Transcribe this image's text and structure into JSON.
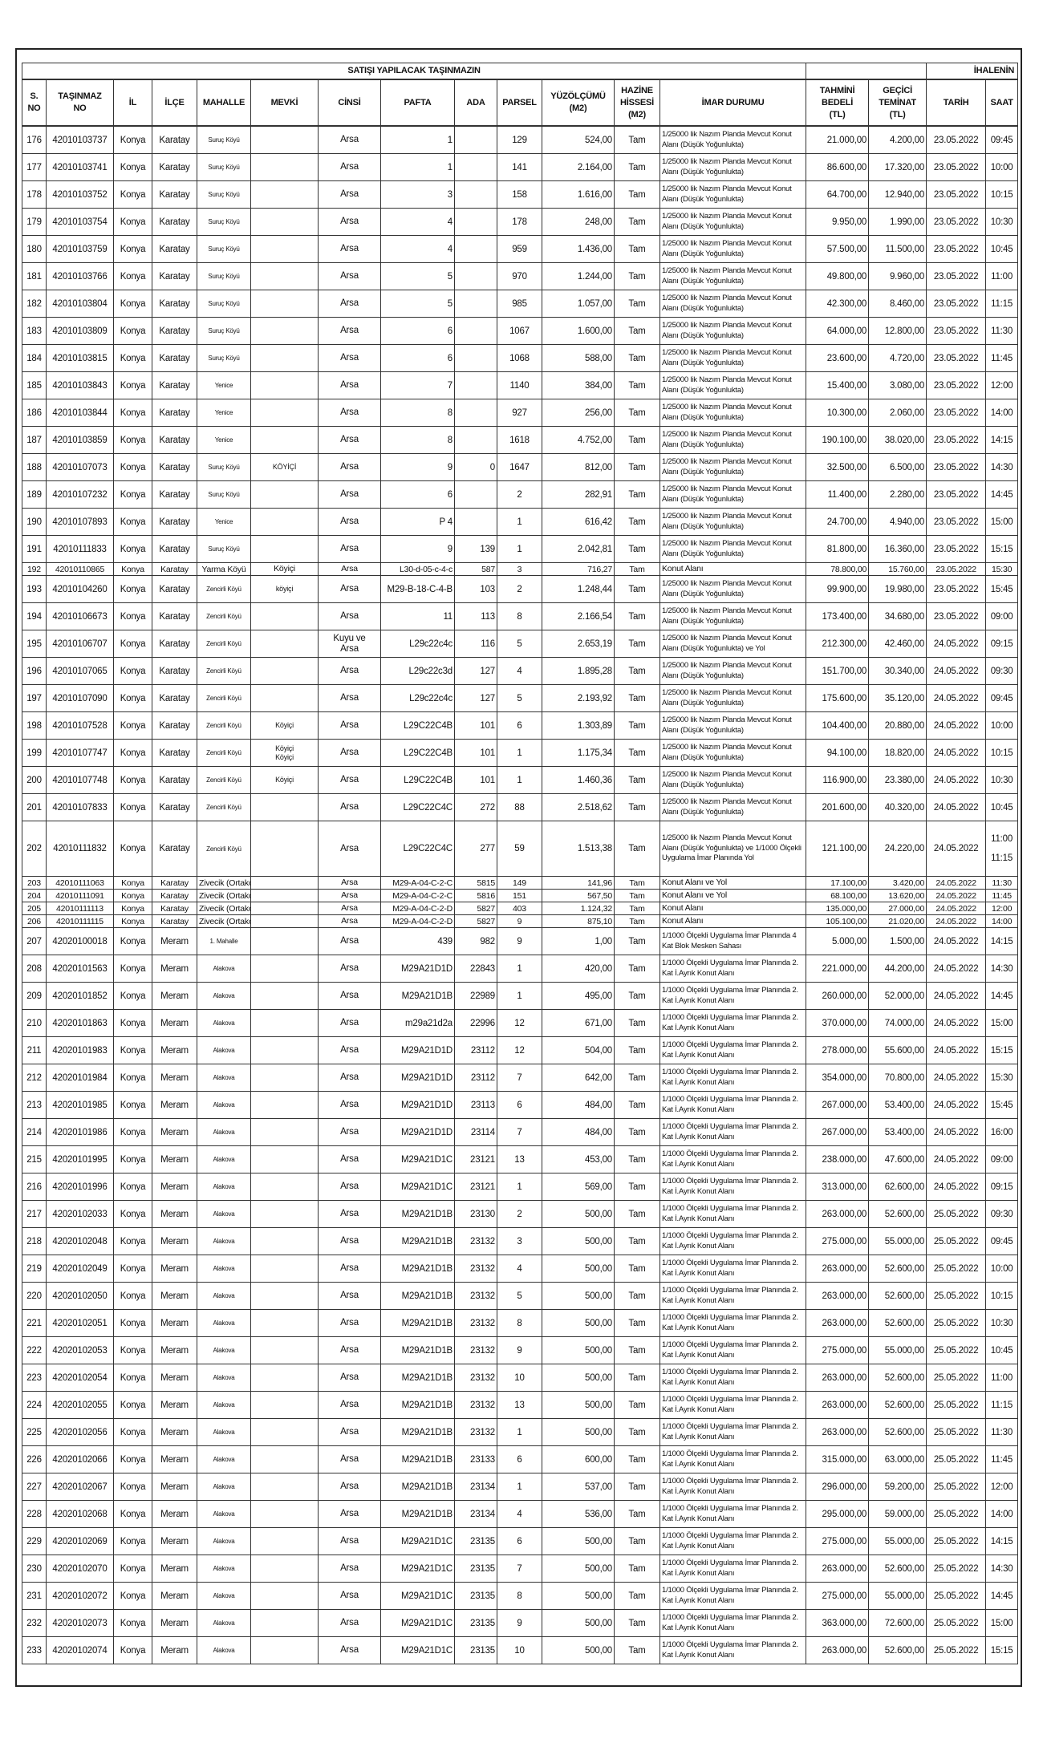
{
  "title": "SATIŞI YAPILACAK TAŞINMAZIN",
  "ihale_title": "İHALENİN",
  "headers": [
    "S.\nNO",
    "TAŞINMAZ\nNO",
    "İL",
    "İLÇE",
    "MAHALLE",
    "MEVKİ",
    "CİNSİ",
    "PAFTA",
    "ADA",
    "PARSEL",
    "YÜZÖLÇÜMÜ\n(M2)",
    "HAZİNE\nHİSSESİ\n(M2)",
    "İMAR DURUMU",
    "TAHMİNİ\nBEDELİ\n(TL)",
    "GEÇİCİ\nTEMİNAT\n(TL)",
    "TARİH",
    "SAAT"
  ],
  "rows": [
    [
      "176",
      "42010103737",
      "Konya",
      "Karatay",
      "Suruç Köyü",
      "",
      "Arsa",
      "1",
      "",
      "129",
      "524,00",
      "Tam",
      "1/25000 lik Nazım Planda Mevcut Konut Alanı (Düşük Yoğunlukta)",
      "21.000,00",
      "4.200,00",
      "23.05.2022",
      "09:45"
    ],
    [
      "177",
      "42010103741",
      "Konya",
      "Karatay",
      "Suruç Köyü",
      "",
      "Arsa",
      "1",
      "",
      "141",
      "2.164,00",
      "Tam",
      "1/25000 lik Nazım Planda Mevcut Konut Alanı (Düşük Yoğunlukta)",
      "86.600,00",
      "17.320,00",
      "23.05.2022",
      "10:00"
    ],
    [
      "178",
      "42010103752",
      "Konya",
      "Karatay",
      "Suruç Köyü",
      "",
      "Arsa",
      "3",
      "",
      "158",
      "1.616,00",
      "Tam",
      "1/25000 lik Nazım Planda Mevcut Konut Alanı (Düşük Yoğunlukta)",
      "64.700,00",
      "12.940,00",
      "23.05.2022",
      "10:15"
    ],
    [
      "179",
      "42010103754",
      "Konya",
      "Karatay",
      "Suruç Köyü",
      "",
      "Arsa",
      "4",
      "",
      "178",
      "248,00",
      "Tam",
      "1/25000 lik Nazım Planda Mevcut Konut Alanı (Düşük Yoğunlukta)",
      "9.950,00",
      "1.990,00",
      "23.05.2022",
      "10:30"
    ],
    [
      "180",
      "42010103759",
      "Konya",
      "Karatay",
      "Suruç Köyü",
      "",
      "Arsa",
      "4",
      "",
      "959",
      "1.436,00",
      "Tam",
      "1/25000 lik Nazım Planda Mevcut Konut Alanı (Düşük Yoğunlukta)",
      "57.500,00",
      "11.500,00",
      "23.05.2022",
      "10:45"
    ],
    [
      "181",
      "42010103766",
      "Konya",
      "Karatay",
      "Suruç Köyü",
      "",
      "Arsa",
      "5",
      "",
      "970",
      "1.244,00",
      "Tam",
      "1/25000 lik Nazım Planda Mevcut Konut Alanı (Düşük Yoğunlukta)",
      "49.800,00",
      "9.960,00",
      "23.05.2022",
      "11:00"
    ],
    [
      "182",
      "42010103804",
      "Konya",
      "Karatay",
      "Suruç Köyü",
      "",
      "Arsa",
      "5",
      "",
      "985",
      "1.057,00",
      "Tam",
      "1/25000 lik Nazım Planda Mevcut Konut Alanı (Düşük Yoğunlukta)",
      "42.300,00",
      "8.460,00",
      "23.05.2022",
      "11:15"
    ],
    [
      "183",
      "42010103809",
      "Konya",
      "Karatay",
      "Suruç Köyü",
      "",
      "Arsa",
      "6",
      "",
      "1067",
      "1.600,00",
      "Tam",
      "1/25000 lik Nazım Planda Mevcut Konut Alanı (Düşük Yoğunlukta)",
      "64.000,00",
      "12.800,00",
      "23.05.2022",
      "11:30"
    ],
    [
      "184",
      "42010103815",
      "Konya",
      "Karatay",
      "Suruç Köyü",
      "",
      "Arsa",
      "6",
      "",
      "1068",
      "588,00",
      "Tam",
      "1/25000 lik Nazım Planda Mevcut Konut Alanı (Düşük Yoğunlukta)",
      "23.600,00",
      "4.720,00",
      "23.05.2022",
      "11:45"
    ],
    [
      "185",
      "42010103843",
      "Konya",
      "Karatay",
      "Yenice",
      "",
      "Arsa",
      "7",
      "",
      "1140",
      "384,00",
      "Tam",
      "1/25000 lik Nazım Planda Mevcut Konut Alanı (Düşük Yoğunlukta)",
      "15.400,00",
      "3.080,00",
      "23.05.2022",
      "12:00"
    ],
    [
      "186",
      "42010103844",
      "Konya",
      "Karatay",
      "Yenice",
      "",
      "Arsa",
      "8",
      "",
      "927",
      "256,00",
      "Tam",
      "1/25000 lik Nazım Planda Mevcut Konut Alanı (Düşük Yoğunlukta)",
      "10.300,00",
      "2.060,00",
      "23.05.2022",
      "14:00"
    ],
    [
      "187",
      "42010103859",
      "Konya",
      "Karatay",
      "Yenice",
      "",
      "Arsa",
      "8",
      "",
      "1618",
      "4.752,00",
      "Tam",
      "1/25000 lik Nazım Planda Mevcut Konut Alanı (Düşük Yoğunlukta)",
      "190.100,00",
      "38.020,00",
      "23.05.2022",
      "14:15"
    ],
    [
      "188",
      "42010107073",
      "Konya",
      "Karatay",
      "Suruç Köyü",
      "KÖYİÇİ",
      "Arsa",
      "9",
      "0",
      "1647",
      "812,00",
      "Tam",
      "1/25000 lik Nazım Planda Mevcut Konut Alanı (Düşük Yoğunlukta)",
      "32.500,00",
      "6.500,00",
      "23.05.2022",
      "14:30"
    ],
    [
      "189",
      "42010107232",
      "Konya",
      "Karatay",
      "Suruç Köyü",
      "",
      "Arsa",
      "6",
      "",
      "2",
      "282,91",
      "Tam",
      "1/25000 lik Nazım Planda Mevcut Konut Alanı (Düşük Yoğunlukta)",
      "11.400,00",
      "2.280,00",
      "23.05.2022",
      "14:45"
    ],
    [
      "190",
      "42010107893",
      "Konya",
      "Karatay",
      "Yenice",
      "",
      "Arsa",
      "P 4",
      "",
      "1",
      "616,42",
      "Tam",
      "1/25000 lik Nazım Planda Mevcut Konut Alanı (Düşük Yoğunlukta)",
      "24.700,00",
      "4.940,00",
      "23.05.2022",
      "15:00"
    ],
    [
      "191",
      "42010111833",
      "Konya",
      "Karatay",
      "Suruç Köyü",
      "",
      "Arsa",
      "9",
      "139",
      "1",
      "2.042,81",
      "Tam",
      "1/25000 lik Nazım Planda Mevcut Konut Alanı (Düşük Yoğunlukta)",
      "81.800,00",
      "16.360,00",
      "23.05.2022",
      "15:15"
    ],
    [
      "192",
      "42010110865",
      "Konya",
      "Karatay",
      "Yarma Köyü",
      "Köyiçi",
      "Arsa",
      "L30-d-05-c-4-c",
      "587",
      "3",
      "716,27",
      "Tam",
      "Konut Alanı",
      "78.800,00",
      "15.760,00",
      "23.05.2022",
      "15:30"
    ],
    [
      "193",
      "42010104260",
      "Konya",
      "Karatay",
      "Zencirli Köyü",
      "köyiçi",
      "Arsa",
      "M29-B-18-C-4-B",
      "103",
      "2",
      "1.248,44",
      "Tam",
      "1/25000 lik Nazım Planda Mevcut Konut Alanı (Düşük Yoğunlukta)",
      "99.900,00",
      "19.980,00",
      "23.05.2022",
      "15:45"
    ],
    [
      "194",
      "42010106673",
      "Konya",
      "Karatay",
      "Zencirli Köyü",
      "",
      "Arsa",
      "11",
      "113",
      "8",
      "2.166,54",
      "Tam",
      "1/25000 lik Nazım Planda Mevcut Konut Alanı (Düşük Yoğunlukta)",
      "173.400,00",
      "34.680,00",
      "23.05.2022",
      "09:00"
    ],
    [
      "195",
      "42010106707",
      "Konya",
      "Karatay",
      "Zencirli Köyü",
      "",
      "Kuyu ve\nArsa",
      "L29c22c4c",
      "116",
      "5",
      "2.653,19",
      "Tam",
      "1/25000 lik Nazım Planda Mevcut Konut Alanı (Düşük Yoğunlukta) ve Yol",
      "212.300,00",
      "42.460,00",
      "24.05.2022",
      "09:15"
    ],
    [
      "196",
      "42010107065",
      "Konya",
      "Karatay",
      "Zencirli Köyü",
      "",
      "Arsa",
      "L29c22c3d",
      "127",
      "4",
      "1.895,28",
      "Tam",
      "1/25000 lik Nazım Planda Mevcut Konut Alanı (Düşük Yoğunlukta)",
      "151.700,00",
      "30.340,00",
      "24.05.2022",
      "09:30"
    ],
    [
      "197",
      "42010107090",
      "Konya",
      "Karatay",
      "Zencirli Köyü",
      "",
      "Arsa",
      "L29c22c4c",
      "127",
      "5",
      "2.193,92",
      "Tam",
      "1/25000 lik Nazım Planda Mevcut Konut Alanı (Düşük Yoğunlukta)",
      "175.600,00",
      "35.120,00",
      "24.05.2022",
      "09:45"
    ],
    [
      "198",
      "42010107528",
      "Konya",
      "Karatay",
      "Zencirli Köyü",
      "Köyiçi",
      "Arsa",
      "L29C22C4B",
      "101",
      "6",
      "1.303,89",
      "Tam",
      "1/25000 lik Nazım Planda Mevcut Konut Alanı (Düşük Yoğunlukta)",
      "104.400,00",
      "20.880,00",
      "24.05.2022",
      "10:00"
    ],
    [
      "199",
      "42010107747",
      "Konya",
      "Karatay",
      "Zencirli Köyü",
      "Köyiçi\nKöyiçi",
      "Arsa",
      "L29C22C4B",
      "101",
      "1",
      "1.175,34",
      "Tam",
      "1/25000 lik Nazım Planda Mevcut Konut Alanı (Düşük Yoğunlukta)",
      "94.100,00",
      "18.820,00",
      "24.05.2022",
      "10:15"
    ],
    [
      "200",
      "42010107748",
      "Konya",
      "Karatay",
      "Zencirli Köyü",
      "Köyiçi",
      "Arsa",
      "L29C22C4B",
      "101",
      "1",
      "1.460,36",
      "Tam",
      "1/25000 lik Nazım Planda Mevcut Konut Alanı (Düşük Yoğunlukta)",
      "116.900,00",
      "23.380,00",
      "24.05.2022",
      "10:30"
    ],
    [
      "201",
      "42010107833",
      "Konya",
      "Karatay",
      "Zencirli Köyü",
      "",
      "Arsa",
      "L29C22C4C",
      "272",
      "88",
      "2.518,62",
      "Tam",
      "1/25000 lik Nazım Planda Mevcut Konut Alanı (Düşük Yoğunlukta)",
      "201.600,00",
      "40.320,00",
      "24.05.2022",
      "10:45"
    ],
    [
      "202",
      "42010111832",
      "Konya",
      "Karatay",
      "Zencirli Köyü",
      "",
      "Arsa",
      "L29C22C4C",
      "277",
      "59",
      "1.513,38",
      "Tam",
      "1/25000 lik Nazım Planda Mevcut Konut Alanı (Düşük Yoğunlukta) ve 1/1000 Ölçekli Uygulama İmar Planında Yol",
      "121.100,00",
      "24.220,00",
      "24.05.2022",
      "11:00\n\n11:15"
    ],
    [
      "203",
      "42010111063",
      "Konya",
      "Karatay",
      "Zivecik (Ortakonak)",
      "",
      "Arsa",
      "M29-A-04-C-2-C",
      "5815",
      "149",
      "141,96",
      "Tam",
      "Konut Alanı ve Yol",
      "17.100,00",
      "3.420,00",
      "24.05.2022",
      "11:30"
    ],
    [
      "204",
      "42010111091",
      "Konya",
      "Karatay",
      "Zivecik (Ortakonak)",
      "",
      "Arsa",
      "M29-A-04-C-2-C",
      "5816",
      "151",
      "567,50",
      "Tam",
      "Konut Alanı ve Yol",
      "68.100,00",
      "13.620,00",
      "24.05.2022",
      "11:45"
    ],
    [
      "205",
      "42010111113",
      "Konya",
      "Karatay",
      "Zivecik (Ortakonak)",
      "",
      "Arsa",
      "M29-A-04-C-2-D",
      "5827",
      "403",
      "1.124,32",
      "Tam",
      "Konut Alanı",
      "135.000,00",
      "27.000,00",
      "24.05.2022",
      "12:00"
    ],
    [
      "206",
      "42010111115",
      "Konya",
      "Karatay",
      "Zivecik (Ortakonak)",
      "",
      "Arsa",
      "M29-A-04-C-2-D",
      "5827",
      "9",
      "875,10",
      "Tam",
      "Konut Alanı",
      "105.100,00",
      "21.020,00",
      "24.05.2022",
      "14:00"
    ],
    [
      "207",
      "42020100018",
      "Konya",
      "Meram",
      "1. Mahalle",
      "",
      "Arsa",
      "439",
      "982",
      "9",
      "1,00",
      "Tam",
      "1/1000 Ölçekli Uygulama İmar Planında 4 Kat Blok Mesken Sahası",
      "5.000,00",
      "1.500,00",
      "24.05.2022",
      "14:15"
    ],
    [
      "208",
      "42020101563",
      "Konya",
      "Meram",
      "Alakova",
      "",
      "Arsa",
      "M29A21D1D",
      "22843",
      "1",
      "420,00",
      "Tam",
      "1/1000 Ölçekli Uygulama İmar Planında 2. Kat İ.Ayrık Konut Alanı",
      "221.000,00",
      "44.200,00",
      "24.05.2022",
      "14:30"
    ],
    [
      "209",
      "42020101852",
      "Konya",
      "Meram",
      "Alakova",
      "",
      "Arsa",
      "M29A21D1B",
      "22989",
      "1",
      "495,00",
      "Tam",
      "1/1000 Ölçekli Uygulama İmar Planında 2. Kat İ.Ayrık Konut Alanı",
      "260.000,00",
      "52.000,00",
      "24.05.2022",
      "14:45"
    ],
    [
      "210",
      "42020101863",
      "Konya",
      "Meram",
      "Alakova",
      "",
      "Arsa",
      "m29a21d2a",
      "22996",
      "12",
      "671,00",
      "Tam",
      "1/1000 Ölçekli Uygulama İmar Planında 2. Kat İ.Ayrık Konut Alanı",
      "370.000,00",
      "74.000,00",
      "24.05.2022",
      "15:00"
    ],
    [
      "211",
      "42020101983",
      "Konya",
      "Meram",
      "Alakova",
      "",
      "Arsa",
      "M29A21D1D",
      "23112",
      "12",
      "504,00",
      "Tam",
      "1/1000 Ölçekli Uygulama İmar Planında 2. Kat İ.Ayrık Konut Alanı",
      "278.000,00",
      "55.600,00",
      "24.05.2022",
      "15:15"
    ],
    [
      "212",
      "42020101984",
      "Konya",
      "Meram",
      "Alakova",
      "",
      "Arsa",
      "M29A21D1D",
      "23112",
      "7",
      "642,00",
      "Tam",
      "1/1000 Ölçekli Uygulama İmar Planında 2. Kat İ.Ayrık Konut Alanı",
      "354.000,00",
      "70.800,00",
      "24.05.2022",
      "15:30"
    ],
    [
      "213",
      "42020101985",
      "Konya",
      "Meram",
      "Alakova",
      "",
      "Arsa",
      "M29A21D1D",
      "23113",
      "6",
      "484,00",
      "Tam",
      "1/1000 Ölçekli Uygulama İmar Planında 2. Kat İ.Ayrık Konut Alanı",
      "267.000,00",
      "53.400,00",
      "24.05.2022",
      "15:45"
    ],
    [
      "214",
      "42020101986",
      "Konya",
      "Meram",
      "Alakova",
      "",
      "Arsa",
      "M29A21D1D",
      "23114",
      "7",
      "484,00",
      "Tam",
      "1/1000 Ölçekli Uygulama İmar Planında 2. Kat İ.Ayrık Konut Alanı",
      "267.000,00",
      "53.400,00",
      "24.05.2022",
      "16:00"
    ],
    [
      "215",
      "42020101995",
      "Konya",
      "Meram",
      "Alakova",
      "",
      "Arsa",
      "M29A21D1C",
      "23121",
      "13",
      "453,00",
      "Tam",
      "1/1000 Ölçekli Uygulama İmar Planında 2. Kat İ.Ayrık Konut Alanı",
      "238.000,00",
      "47.600,00",
      "24.05.2022",
      "09:00"
    ],
    [
      "216",
      "42020101996",
      "Konya",
      "Meram",
      "Alakova",
      "",
      "Arsa",
      "M29A21D1C",
      "23121",
      "1",
      "569,00",
      "Tam",
      "1/1000 Ölçekli Uygulama İmar Planında 2. Kat İ.Ayrık Konut Alanı",
      "313.000,00",
      "62.600,00",
      "24.05.2022",
      "09:15"
    ],
    [
      "217",
      "42020102033",
      "Konya",
      "Meram",
      "Alakova",
      "",
      "Arsa",
      "M29A21D1B",
      "23130",
      "2",
      "500,00",
      "Tam",
      "1/1000 Ölçekli Uygulama İmar Planında 2. Kat İ.Ayrık Konut Alanı",
      "263.000,00",
      "52.600,00",
      "25.05.2022",
      "09:30"
    ],
    [
      "218",
      "42020102048",
      "Konya",
      "Meram",
      "Alakova",
      "",
      "Arsa",
      "M29A21D1B",
      "23132",
      "3",
      "500,00",
      "Tam",
      "1/1000 Ölçekli Uygulama İmar Planında 2. Kat İ.Ayrık Konut Alanı",
      "275.000,00",
      "55.000,00",
      "25.05.2022",
      "09:45"
    ],
    [
      "219",
      "42020102049",
      "Konya",
      "Meram",
      "Alakova",
      "",
      "Arsa",
      "M29A21D1B",
      "23132",
      "4",
      "500,00",
      "Tam",
      "1/1000 Ölçekli Uygulama İmar Planında 2. Kat İ.Ayrık Konut Alanı",
      "263.000,00",
      "52.600,00",
      "25.05.2022",
      "10:00"
    ],
    [
      "220",
      "42020102050",
      "Konya",
      "Meram",
      "Alakova",
      "",
      "Arsa",
      "M29A21D1B",
      "23132",
      "5",
      "500,00",
      "Tam",
      "1/1000 Ölçekli Uygulama İmar Planında 2. Kat İ.Ayrık Konut Alanı",
      "263.000,00",
      "52.600,00",
      "25.05.2022",
      "10:15"
    ],
    [
      "221",
      "42020102051",
      "Konya",
      "Meram",
      "Alakova",
      "",
      "Arsa",
      "M29A21D1B",
      "23132",
      "8",
      "500,00",
      "Tam",
      "1/1000 Ölçekli Uygulama İmar Planında 2. Kat İ.Ayrık Konut Alanı",
      "263.000,00",
      "52.600,00",
      "25.05.2022",
      "10:30"
    ],
    [
      "222",
      "42020102053",
      "Konya",
      "Meram",
      "Alakova",
      "",
      "Arsa",
      "M29A21D1B",
      "23132",
      "9",
      "500,00",
      "Tam",
      "1/1000 Ölçekli Uygulama İmar Planında 2. Kat İ.Ayrık Konut Alanı",
      "275.000,00",
      "55.000,00",
      "25.05.2022",
      "10:45"
    ],
    [
      "223",
      "42020102054",
      "Konya",
      "Meram",
      "Alakova",
      "",
      "Arsa",
      "M29A21D1B",
      "23132",
      "10",
      "500,00",
      "Tam",
      "1/1000 Ölçekli Uygulama İmar Planında 2. Kat İ.Ayrık Konut Alanı",
      "263.000,00",
      "52.600,00",
      "25.05.2022",
      "11:00"
    ],
    [
      "224",
      "42020102055",
      "Konya",
      "Meram",
      "Alakova",
      "",
      "Arsa",
      "M29A21D1B",
      "23132",
      "13",
      "500,00",
      "Tam",
      "1/1000 Ölçekli Uygulama İmar Planında 2. Kat İ.Ayrık Konut Alanı",
      "263.000,00",
      "52.600,00",
      "25.05.2022",
      "11:15"
    ],
    [
      "225",
      "42020102056",
      "Konya",
      "Meram",
      "Alakova",
      "",
      "Arsa",
      "M29A21D1B",
      "23132",
      "1",
      "500,00",
      "Tam",
      "1/1000 Ölçekli Uygulama İmar Planında 2. Kat İ.Ayrık Konut Alanı",
      "263.000,00",
      "52.600,00",
      "25.05.2022",
      "11:30"
    ],
    [
      "226",
      "42020102066",
      "Konya",
      "Meram",
      "Alakova",
      "",
      "Arsa",
      "M29A21D1B",
      "23133",
      "6",
      "600,00",
      "Tam",
      "1/1000 Ölçekli Uygulama İmar Planında 2. Kat İ.Ayrık Konut Alanı",
      "315.000,00",
      "63.000,00",
      "25.05.2022",
      "11:45"
    ],
    [
      "227",
      "42020102067",
      "Konya",
      "Meram",
      "Alakova",
      "",
      "Arsa",
      "M29A21D1B",
      "23134",
      "1",
      "537,00",
      "Tam",
      "1/1000 Ölçekli Uygulama İmar Planında 2. Kat İ.Ayrık Konut Alanı",
      "296.000,00",
      "59.200,00",
      "25.05.2022",
      "12:00"
    ],
    [
      "228",
      "42020102068",
      "Konya",
      "Meram",
      "Alakova",
      "",
      "Arsa",
      "M29A21D1B",
      "23134",
      "4",
      "536,00",
      "Tam",
      "1/1000 Ölçekli Uygulama İmar Planında 2. Kat İ.Ayrık Konut Alanı",
      "295.000,00",
      "59.000,00",
      "25.05.2022",
      "14:00"
    ],
    [
      "229",
      "42020102069",
      "Konya",
      "Meram",
      "Alakova",
      "",
      "Arsa",
      "M29A21D1C",
      "23135",
      "6",
      "500,00",
      "Tam",
      "1/1000 Ölçekli Uygulama İmar Planında 2. Kat İ.Ayrık Konut Alanı",
      "275.000,00",
      "55.000,00",
      "25.05.2022",
      "14:15"
    ],
    [
      "230",
      "42020102070",
      "Konya",
      "Meram",
      "Alakova",
      "",
      "Arsa",
      "M29A21D1C",
      "23135",
      "7",
      "500,00",
      "Tam",
      "1/1000 Ölçekli Uygulama İmar Planında 2. Kat İ.Ayrık Konut Alanı",
      "263.000,00",
      "52.600,00",
      "25.05.2022",
      "14:30"
    ],
    [
      "231",
      "42020102072",
      "Konya",
      "Meram",
      "Alakova",
      "",
      "Arsa",
      "M29A21D1C",
      "23135",
      "8",
      "500,00",
      "Tam",
      "1/1000 Ölçekli Uygulama İmar Planında 2. Kat İ.Ayrık Konut Alanı",
      "275.000,00",
      "55.000,00",
      "25.05.2022",
      "14:45"
    ],
    [
      "232",
      "42020102073",
      "Konya",
      "Meram",
      "Alakova",
      "",
      "Arsa",
      "M29A21D1C",
      "23135",
      "9",
      "500,00",
      "Tam",
      "1/1000 Ölçekli Uygulama İmar Planında 2. Kat İ.Ayrık Konut Alanı",
      "363.000,00",
      "72.600,00",
      "25.05.2022",
      "15:00"
    ],
    [
      "233",
      "42020102074",
      "Konya",
      "Meram",
      "Alakova",
      "",
      "Arsa",
      "M29A21D1C",
      "23135",
      "10",
      "500,00",
      "Tam",
      "1/1000 Ölçekli Uygulama İmar Planında 2. Kat İ.Ayrık Konut Alanı",
      "263.000,00",
      "52.600,00",
      "25.05.2022",
      "15:15"
    ]
  ]
}
